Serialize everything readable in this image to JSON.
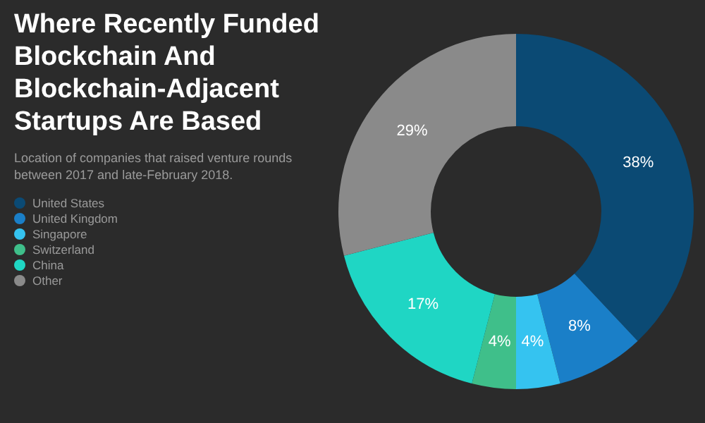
{
  "chart_data": {
    "type": "donut",
    "title": "Where Recently Funded Blockchain And Blockchain-Adjacent Startups Are Based",
    "subtitle": "Location of companies that raised venture rounds between 2017 and late-February 2018.",
    "categories": [
      "United States",
      "United Kingdom",
      "Singapore",
      "Switzerland",
      "China",
      "Other"
    ],
    "values": [
      38,
      8,
      4,
      4,
      17,
      29
    ],
    "value_labels": [
      "38%",
      "8%",
      "4%",
      "4%",
      "17%",
      "29%"
    ],
    "colors": [
      "#0b4a74",
      "#1a7fc8",
      "#35c3f0",
      "#3fbf8a",
      "#1fd6c4",
      "#8a8a8a"
    ],
    "legend": "left"
  }
}
